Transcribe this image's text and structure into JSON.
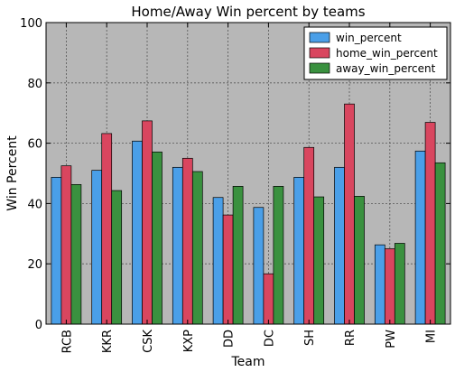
{
  "chart_data": {
    "type": "bar",
    "title": "Home/Away Win percent by teams",
    "xlabel": "Team",
    "ylabel": "Win Percent",
    "ylim": [
      0,
      100
    ],
    "yticks": [
      0,
      20,
      40,
      60,
      80,
      100
    ],
    "grid": true,
    "legend_position": "top-right",
    "categories": [
      "RCB",
      "KKR",
      "CSK",
      "KXP",
      "DD",
      "DC",
      "SH",
      "RR",
      "PW",
      "MI"
    ],
    "series": [
      {
        "name": "win_percent",
        "color": "#4a9fe8",
        "values": [
          48.7,
          51.0,
          60.7,
          52.0,
          42.0,
          38.7,
          48.7,
          52.0,
          26.3,
          57.4
        ]
      },
      {
        "name": "home_win_percent",
        "color": "#d9465f",
        "values": [
          52.5,
          63.2,
          67.4,
          55.0,
          36.2,
          16.7,
          58.6,
          73.0,
          25.0,
          66.9
        ]
      },
      {
        "name": "away_win_percent",
        "color": "#3a913f",
        "values": [
          46.3,
          44.3,
          57.1,
          50.6,
          45.7,
          45.7,
          42.2,
          42.4,
          26.8,
          53.5
        ]
      }
    ],
    "plot_background": "#bfbfbf"
  }
}
